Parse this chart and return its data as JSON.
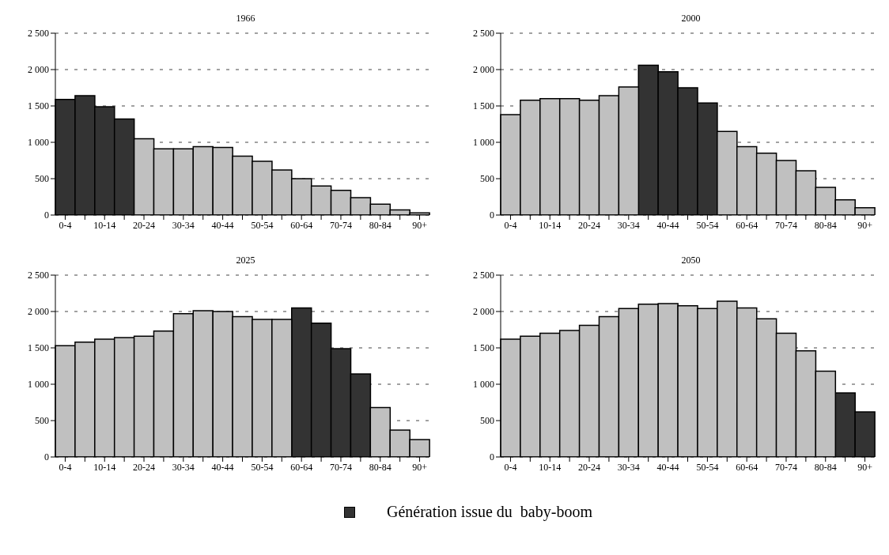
{
  "chart_data": [
    {
      "type": "bar",
      "title": "1966",
      "categories": [
        "0-4",
        null,
        "10-14",
        null,
        "20-24",
        null,
        "30-34",
        null,
        "40-44",
        null,
        "50-54",
        null,
        "60-64",
        null,
        "70-74",
        null,
        "80-84",
        null,
        "90+"
      ],
      "stacked": true,
      "series": [
        {
          "color": "#333333",
          "values": [
            1590,
            1640,
            1490,
            1320,
            null,
            null,
            null,
            null,
            null,
            null,
            null,
            null,
            null,
            null,
            null,
            null,
            null,
            null,
            null
          ]
        },
        {
          "color": "#c0c0c0",
          "values": [
            null,
            null,
            null,
            null,
            1050,
            910,
            910,
            940,
            930,
            810,
            740,
            620,
            500,
            400,
            340,
            240,
            150,
            70,
            30
          ]
        }
      ],
      "ylim": [
        0,
        2500
      ],
      "yticks": [
        {
          "value": 0,
          "label": "0"
        },
        {
          "value": 500,
          "label": "500"
        },
        {
          "value": 1000,
          "label": "1 000"
        },
        {
          "value": 1500,
          "label": "1 500"
        },
        {
          "value": 2000,
          "label": "2 000"
        },
        {
          "value": 2500,
          "label": "2 500"
        }
      ],
      "grid": "y"
    },
    {
      "type": "bar",
      "title": "2000",
      "categories": [
        "0-4",
        null,
        "10-14",
        null,
        "20-24",
        null,
        "30-34",
        null,
        "40-44",
        null,
        "50-54",
        null,
        "60-64",
        null,
        "70-74",
        null,
        "80-84",
        null,
        "90+"
      ],
      "stacked": true,
      "series": [
        {
          "color": "#333333",
          "values": [
            null,
            null,
            null,
            null,
            null,
            null,
            null,
            2060,
            1970,
            1750,
            1540,
            null,
            null,
            null,
            null,
            null,
            null,
            null,
            null
          ]
        },
        {
          "color": "#c0c0c0",
          "values": [
            1380,
            1580,
            1600,
            1600,
            1580,
            1640,
            1760,
            null,
            null,
            null,
            null,
            1150,
            940,
            850,
            750,
            610,
            380,
            210,
            100
          ]
        }
      ],
      "ylim": [
        0,
        2500
      ],
      "yticks": [
        {
          "value": 0,
          "label": "0"
        },
        {
          "value": 500,
          "label": "500"
        },
        {
          "value": 1000,
          "label": "1 000"
        },
        {
          "value": 1500,
          "label": "1 500"
        },
        {
          "value": 2000,
          "label": "2 000"
        },
        {
          "value": 2500,
          "label": "2 500"
        }
      ],
      "grid": "y"
    },
    {
      "type": "bar",
      "title": "2025",
      "categories": [
        "0-4",
        null,
        "10-14",
        null,
        "20-24",
        null,
        "30-34",
        null,
        "40-44",
        null,
        "50-54",
        null,
        "60-64",
        null,
        "70-74",
        null,
        "80-84",
        null,
        "90+"
      ],
      "stacked": true,
      "series": [
        {
          "color": "#333333",
          "values": [
            null,
            null,
            null,
            null,
            null,
            null,
            null,
            null,
            null,
            null,
            null,
            null,
            2050,
            1840,
            1490,
            1140,
            null,
            null,
            null
          ]
        },
        {
          "color": "#c0c0c0",
          "values": [
            1530,
            1580,
            1620,
            1640,
            1660,
            1730,
            1970,
            2010,
            2000,
            1930,
            1890,
            1890,
            null,
            null,
            null,
            null,
            680,
            370,
            240
          ]
        }
      ],
      "ylim": [
        0,
        2500
      ],
      "yticks": [
        {
          "value": 0,
          "label": "0"
        },
        {
          "value": 500,
          "label": "500"
        },
        {
          "value": 1000,
          "label": "1 000"
        },
        {
          "value": 1500,
          "label": "1 500"
        },
        {
          "value": 2000,
          "label": "2 000"
        },
        {
          "value": 2500,
          "label": "2 500"
        }
      ],
      "grid": "y"
    },
    {
      "type": "bar",
      "title": "2050",
      "categories": [
        "0-4",
        null,
        "10-14",
        null,
        "20-24",
        null,
        "30-34",
        null,
        "40-44",
        null,
        "50-54",
        null,
        "60-64",
        null,
        "70-74",
        null,
        "80-84",
        null,
        "90+"
      ],
      "stacked": true,
      "series": [
        {
          "name": "Génération issue du  baby-boom",
          "color": "#333333",
          "values": [
            null,
            null,
            null,
            null,
            null,
            null,
            null,
            null,
            null,
            null,
            null,
            null,
            null,
            null,
            null,
            null,
            null,
            880,
            620
          ]
        },
        {
          "color": "#c0c0c0",
          "values": [
            1620,
            1660,
            1700,
            1740,
            1810,
            1930,
            2040,
            2100,
            2110,
            2080,
            2040,
            2140,
            2050,
            1900,
            1700,
            1460,
            1180,
            null,
            null
          ]
        }
      ],
      "ylim": [
        0,
        2500
      ],
      "yticks": [
        {
          "value": 0,
          "label": "0"
        },
        {
          "value": 500,
          "label": "500"
        },
        {
          "value": 1000,
          "label": "1 000"
        },
        {
          "value": 1500,
          "label": "1 500"
        },
        {
          "value": 2000,
          "label": "2 000"
        },
        {
          "value": 2500,
          "label": "2 500"
        }
      ],
      "grid": "y",
      "legend": "bottom"
    }
  ]
}
